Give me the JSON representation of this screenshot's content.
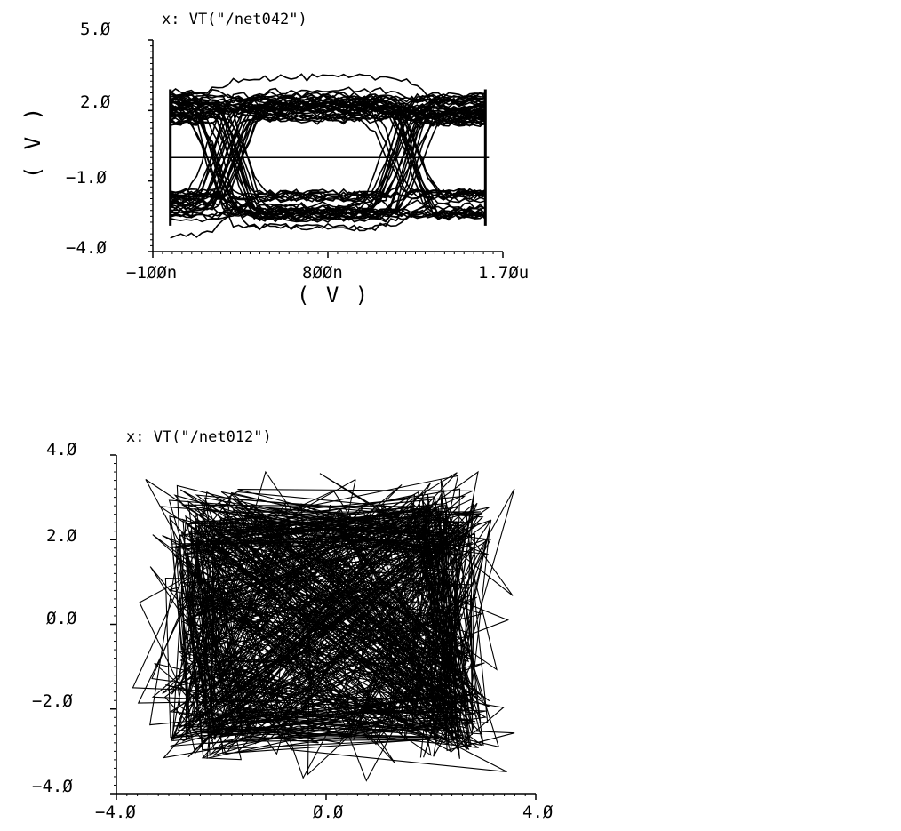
{
  "chart_data": [
    {
      "type": "line",
      "title": "x: VT(\"/net042\")",
      "xlabel": "( V )",
      "ylabel": "( V )",
      "xlim": [
        -100,
        1700
      ],
      "ylim": [
        -4.0,
        5.0
      ],
      "x_unit_note": "ns",
      "xticks": [
        -100,
        800,
        1700
      ],
      "xtick_labels": [
        "−1ØØn",
        "8ØØn",
        "1.7Øu"
      ],
      "yticks": [
        5.0,
        2.0,
        -1.0,
        -4.0
      ],
      "ytick_labels": [
        "5.Ø",
        "2.Ø",
        "−1.Ø",
        "−4.Ø"
      ],
      "ui_period_ns": 800,
      "levels": [
        2.0,
        -2.0
      ],
      "reference_line_y": 0.0,
      "grid": false,
      "color": "#000000"
    },
    {
      "type": "line",
      "title": "x: VT(\"/net012\")",
      "xlabel": "",
      "ylabel": "",
      "xlim": [
        -4.0,
        4.0
      ],
      "ylim": [
        -4.0,
        4.0
      ],
      "xticks": [
        -4.0,
        0.0,
        4.0
      ],
      "xtick_labels": [
        "−4.Ø",
        "Ø.Ø",
        "4.Ø"
      ],
      "yticks": [
        4.0,
        2.0,
        0.0,
        -2.0,
        -4.0
      ],
      "ytick_labels": [
        "4.Ø",
        "2.Ø",
        "Ø.Ø",
        "−2.Ø",
        "−4.Ø"
      ],
      "nominal_extent": 2.4,
      "grid": false,
      "color": "#000000"
    }
  ]
}
